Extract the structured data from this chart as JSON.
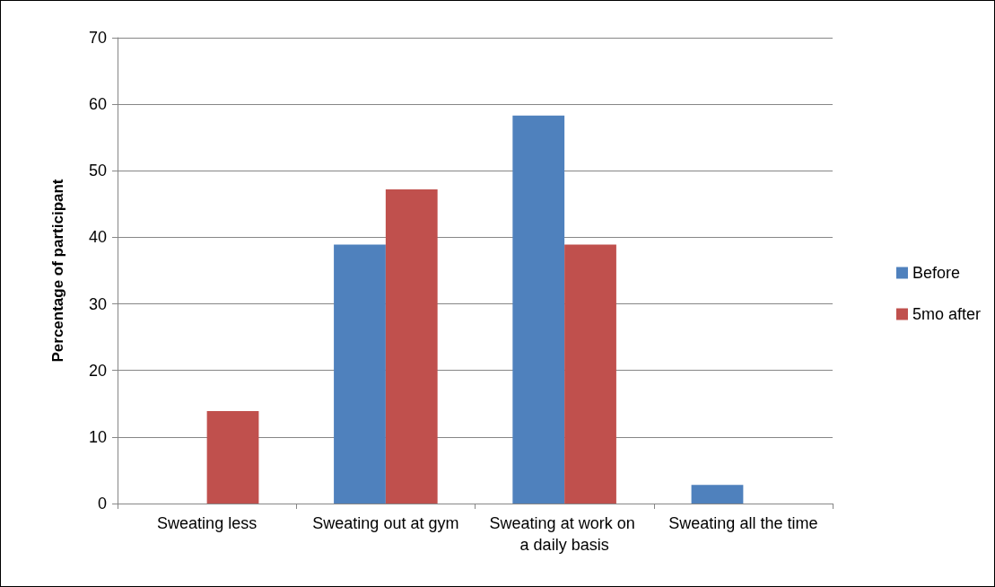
{
  "chart_data": {
    "type": "bar",
    "ylabel": "Percentage of participant",
    "categories": [
      "Sweating less",
      "Sweating out at gym",
      "Sweating at work on a daily basis",
      "Sweating all the time"
    ],
    "series": [
      {
        "name": "Before",
        "color": "#4f81bd",
        "values": [
          0,
          38.9,
          58.3,
          2.8
        ]
      },
      {
        "name": "5mo after",
        "color": "#c0504d",
        "values": [
          13.9,
          47.2,
          38.9,
          0
        ]
      }
    ],
    "ylim": [
      0,
      70
    ],
    "yticks": [
      0,
      10,
      20,
      30,
      40,
      50,
      60,
      70
    ],
    "grid": "y",
    "legend": "right"
  }
}
